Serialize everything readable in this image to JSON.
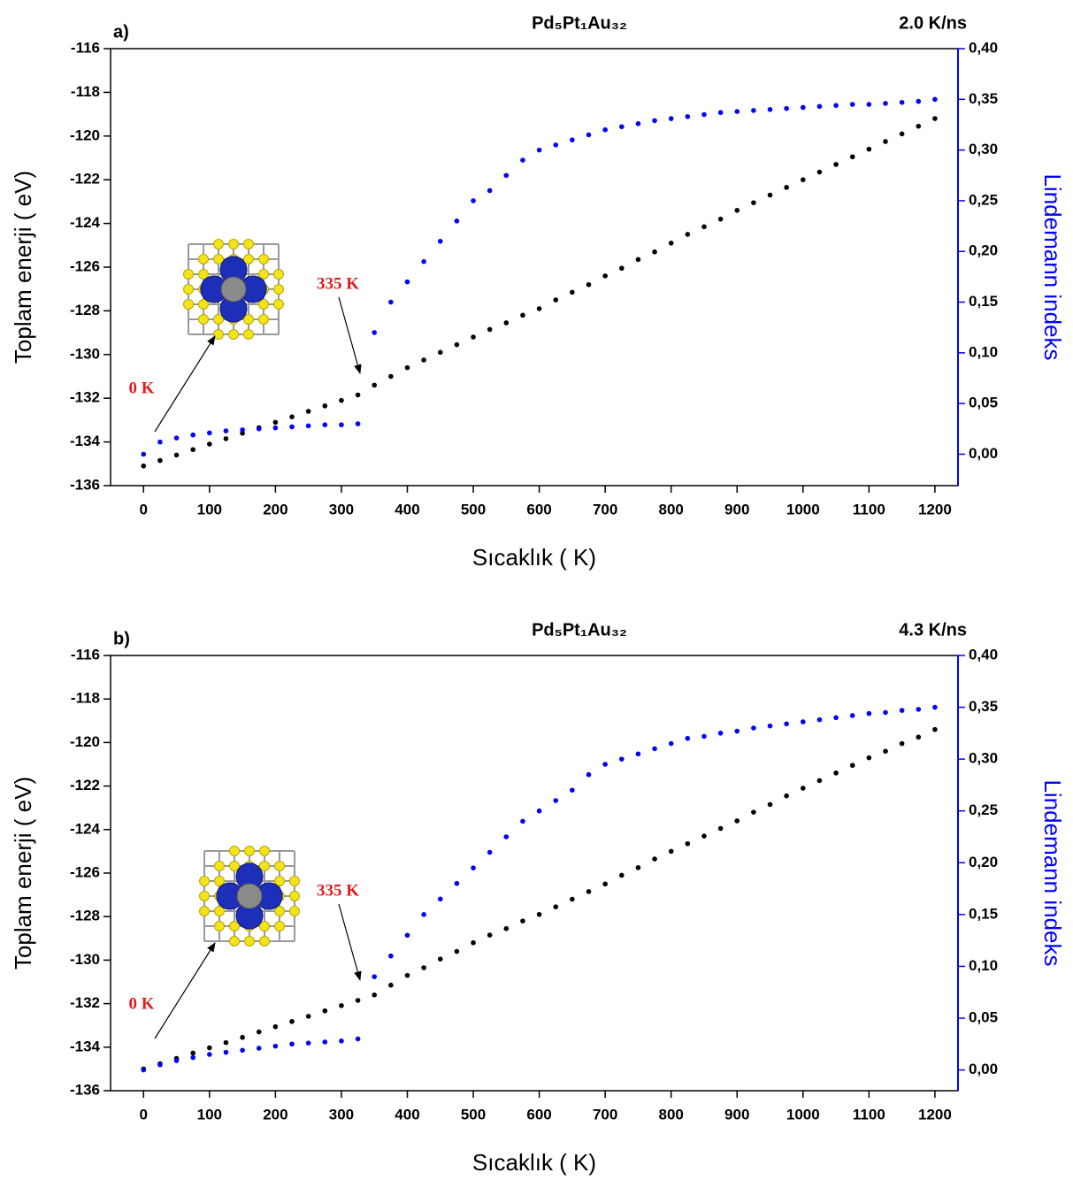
{
  "chart_data": [
    {
      "type": "scatter",
      "panel": "a)",
      "title": "Pd₅Pt₁Au₃₂",
      "subtitle": "2.0 K/ns",
      "x_label": "Sıcaklık  ( K)",
      "y_label": "Toplam enerji  ( eV)",
      "y2_label": "Lindemann indeks",
      "annotations": [
        "0 K",
        "335 K"
      ],
      "xlim": [
        -50,
        1235
      ],
      "xticks": [
        0,
        100,
        200,
        300,
        400,
        500,
        600,
        700,
        800,
        900,
        1000,
        1100,
        1200
      ],
      "ylim": [
        -136,
        -116
      ],
      "yticks": [
        -136,
        -134,
        -132,
        -130,
        -128,
        -126,
        -124,
        -122,
        -120,
        -118,
        -116
      ],
      "y2lim": [
        -0.031,
        0.4
      ],
      "y2ticks": [
        {
          "value": 0,
          "label": "0,00"
        },
        {
          "value": 0.05,
          "label": "0,05"
        },
        {
          "value": 0.1,
          "label": "0,10"
        },
        {
          "value": 0.15,
          "label": "0,15"
        },
        {
          "value": 0.2,
          "label": "0,20"
        },
        {
          "value": 0.25,
          "label": "0,25"
        },
        {
          "value": 0.3,
          "label": "0,30"
        },
        {
          "value": 0.35,
          "label": "0,35"
        },
        {
          "value": 0.4,
          "label": "0,40"
        }
      ],
      "x": [
        0,
        25,
        50,
        75,
        100,
        125,
        150,
        175,
        200,
        225,
        250,
        275,
        300,
        325,
        350,
        375,
        400,
        425,
        450,
        475,
        500,
        525,
        550,
        575,
        600,
        625,
        650,
        675,
        700,
        725,
        750,
        775,
        800,
        825,
        850,
        875,
        900,
        925,
        950,
        975,
        1000,
        1025,
        1050,
        1075,
        1100,
        1125,
        1150,
        1175,
        1200
      ],
      "series": [
        {
          "color": "#000000",
          "axis": "y",
          "values": [
            -135.1,
            -134.85,
            -134.6,
            -134.35,
            -134.1,
            -133.85,
            -133.6,
            -133.35,
            -133.1,
            -132.85,
            -132.6,
            -132.35,
            -132.1,
            -131.85,
            -131.4,
            -131.0,
            -130.6,
            -130.25,
            -129.9,
            -129.55,
            -129.2,
            -128.85,
            -128.55,
            -128.2,
            -127.9,
            -127.5,
            -127.15,
            -126.8,
            -126.4,
            -126.05,
            -125.65,
            -125.3,
            -124.9,
            -124.5,
            -124.15,
            -123.8,
            -123.4,
            -123.05,
            -122.7,
            -122.35,
            -122.0,
            -121.65,
            -121.3,
            -120.95,
            -120.6,
            -120.25,
            -119.9,
            -119.55,
            -119.2
          ]
        },
        {
          "color": "#0000ff",
          "axis": "y2",
          "values": [
            0,
            0.012,
            0.016,
            0.019,
            0.021,
            0.023,
            0.024,
            0.025,
            0.026,
            0.027,
            0.028,
            0.029,
            0.029,
            0.03,
            0.12,
            0.15,
            0.17,
            0.19,
            0.21,
            0.23,
            0.25,
            0.26,
            0.275,
            0.29,
            0.3,
            0.305,
            0.31,
            0.315,
            0.32,
            0.323,
            0.326,
            0.329,
            0.331,
            0.333,
            0.335,
            0.337,
            0.338,
            0.339,
            0.34,
            0.341,
            0.342,
            0.343,
            0.344,
            0.345,
            0.345,
            0.346,
            0.347,
            0.348,
            0.35
          ]
        }
      ]
    },
    {
      "type": "scatter",
      "panel": "b)",
      "title": "Pd₅Pt₁Au₃₂",
      "subtitle": "4.3 K/ns",
      "x_label": "Sıcaklık  ( K)",
      "y_label": "Toplam enerji  ( eV)",
      "y2_label": "Lindemann indeks",
      "annotations": [
        "0 K",
        "335 K"
      ],
      "xlim": [
        -50,
        1235
      ],
      "xticks": [
        0,
        100,
        200,
        300,
        400,
        500,
        600,
        700,
        800,
        900,
        1000,
        1100,
        1200
      ],
      "ylim": [
        -136,
        -116
      ],
      "yticks": [
        -136,
        -134,
        -132,
        -130,
        -128,
        -126,
        -124,
        -122,
        -120,
        -118,
        -116
      ],
      "y2lim": [
        -0.02,
        0.4
      ],
      "y2ticks": [
        {
          "value": 0,
          "label": "0,00"
        },
        {
          "value": 0.05,
          "label": "0,05"
        },
        {
          "value": 0.1,
          "label": "0,10"
        },
        {
          "value": 0.15,
          "label": "0,15"
        },
        {
          "value": 0.2,
          "label": "0,20"
        },
        {
          "value": 0.25,
          "label": "0,25"
        },
        {
          "value": 0.3,
          "label": "0,30"
        },
        {
          "value": 0.35,
          "label": "0,35"
        },
        {
          "value": 0.4,
          "label": "0,40"
        }
      ],
      "x": [
        0,
        25,
        50,
        75,
        100,
        125,
        150,
        175,
        200,
        225,
        250,
        275,
        300,
        325,
        350,
        375,
        400,
        425,
        450,
        475,
        500,
        525,
        550,
        575,
        600,
        625,
        650,
        675,
        700,
        725,
        750,
        775,
        800,
        825,
        850,
        875,
        900,
        925,
        950,
        975,
        1000,
        1025,
        1050,
        1075,
        1100,
        1125,
        1150,
        1175,
        1200
      ],
      "series": [
        {
          "color": "#000000",
          "axis": "y",
          "values": [
            -135.0,
            -134.76,
            -134.52,
            -134.27,
            -134.03,
            -133.79,
            -133.55,
            -133.3,
            -133.06,
            -132.82,
            -132.58,
            -132.33,
            -132.09,
            -131.85,
            -131.6,
            -131.15,
            -130.7,
            -130.35,
            -129.95,
            -129.6,
            -129.2,
            -128.85,
            -128.55,
            -128.2,
            -127.9,
            -127.55,
            -127.2,
            -126.85,
            -126.5,
            -126.1,
            -125.75,
            -125.35,
            -125.0,
            -124.65,
            -124.3,
            -123.95,
            -123.6,
            -123.2,
            -122.85,
            -122.45,
            -122.1,
            -121.75,
            -121.4,
            -121.05,
            -120.7,
            -120.4,
            -120.05,
            -119.75,
            -119.4
          ]
        },
        {
          "color": "#0000ff",
          "axis": "y2",
          "values": [
            0,
            0.005,
            0.009,
            0.012,
            0.015,
            0.017,
            0.019,
            0.021,
            0.023,
            0.025,
            0.026,
            0.027,
            0.028,
            0.03,
            0.09,
            0.11,
            0.13,
            0.15,
            0.165,
            0.18,
            0.195,
            0.21,
            0.225,
            0.24,
            0.25,
            0.26,
            0.27,
            0.285,
            0.295,
            0.3,
            0.305,
            0.31,
            0.315,
            0.32,
            0.322,
            0.325,
            0.327,
            0.33,
            0.332,
            0.334,
            0.336,
            0.338,
            0.34,
            0.342,
            0.344,
            0.345,
            0.347,
            0.348,
            0.35
          ]
        }
      ]
    }
  ]
}
